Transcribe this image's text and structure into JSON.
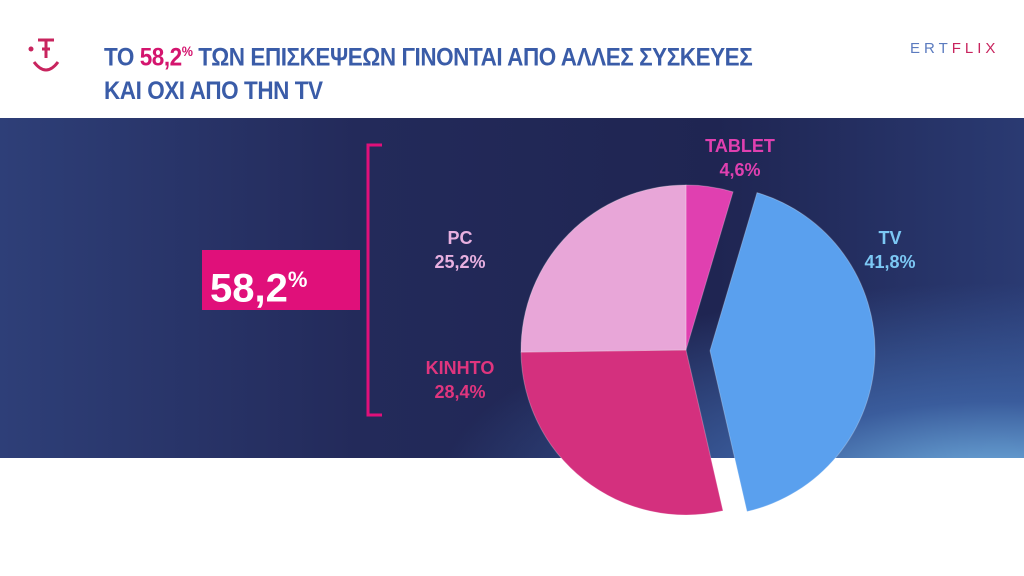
{
  "header": {
    "title_pre": "ΤΟ ",
    "title_highlight": "58,2",
    "title_pct": "%",
    "title_post": " ΤΩΝ ΕΠΙΣΚΕΨΕΩΝ ΓΙΝΟΝΤΑΙ ΑΠΟ ΑΛΛΕΣ ΣΥΣΚΕΥΕΣ",
    "title_line2": "ΚΑΙ ΟΧΙ ΑΠΟ ΤΗΝ TV",
    "brand_a": "ERT",
    "brand_b": "FLIX"
  },
  "callout": {
    "value": "58,2",
    "pct": "%"
  },
  "chart_data": {
    "type": "pie",
    "title": "ΤΟ 58,2% ΤΩΝ ΕΠΙΣΚΕΨΕΩΝ ΓΙΝΟΝΤΑΙ ΑΠΟ ΑΛΛΕΣ ΣΥΣΚΕΥΕΣ ΚΑΙ ΟΧΙ ΑΠΟ ΤΗΝ TV",
    "slices": [
      {
        "name": "TABLET",
        "value": 4.6,
        "label": "4,6%",
        "color": "#e040b0",
        "label_color": "#e040b0"
      },
      {
        "name": "TV",
        "value": 41.8,
        "label": "41,8%",
        "color": "#5aa0ee",
        "label_color": "#7cc8f4",
        "exploded": true
      },
      {
        "name": "ΚΙΝΗΤΟ",
        "value": 28.4,
        "label": "28,4%",
        "color": "#d4307e",
        "label_color": "#e0357e"
      },
      {
        "name": "PC",
        "value": 25.2,
        "label": "25,2%",
        "color": "#e8a6d8",
        "label_color": "#e8b0e0"
      }
    ]
  }
}
